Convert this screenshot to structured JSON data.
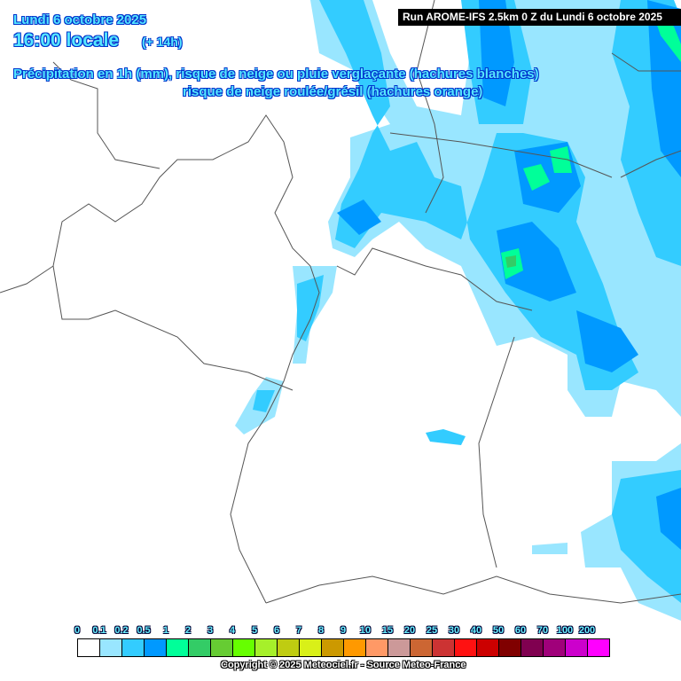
{
  "header": {
    "date": "Lundi 6 octobre 2025",
    "time": "16:00 locale",
    "lead": "(+ 14h)",
    "description_line1": "Précipitation en 1h (mm), risque de neige ou pluie verglaçante (hachures blanches)",
    "description_line2": "risque de neige roulée/grésil (hachures orange)",
    "run": "Run AROME-IFS 2.5km 0 Z du Lundi 6 octobre 2025"
  },
  "legend": {
    "labels": [
      "0",
      "0.1",
      "0.2",
      "0.5",
      "1",
      "2",
      "3",
      "4",
      "5",
      "6",
      "7",
      "8",
      "9",
      "10",
      "15",
      "20",
      "25",
      "30",
      "40",
      "50",
      "60",
      "70",
      "100",
      "200"
    ],
    "colors": [
      "#ffffff",
      "#99e6ff",
      "#33ccff",
      "#0099ff",
      "#00ff99",
      "#33cc66",
      "#66cc33",
      "#66ff00",
      "#a6f02a",
      "#bfcc11",
      "#d9f018",
      "#cc9900",
      "#ff9900",
      "#ff9966",
      "#cc9999",
      "#cc6633",
      "#cc3333",
      "#ff1111",
      "#cc0000",
      "#800000",
      "#800050",
      "#a0007a",
      "#cc00cc",
      "#ff00ff"
    ]
  },
  "footer": {
    "copyright": "Copyright © 2025 Meteociel.fr - Source Meteo-France"
  }
}
